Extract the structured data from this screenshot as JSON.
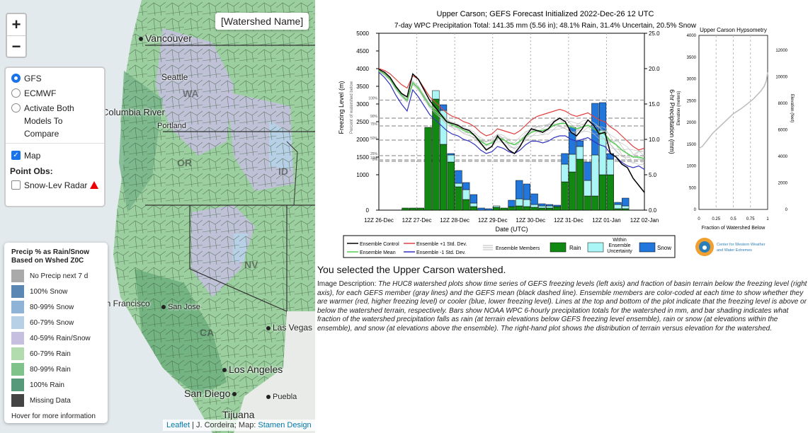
{
  "map": {
    "zoom_in": "+",
    "zoom_out": "−",
    "watershed_name": "[Watershed Name]",
    "cities": [
      {
        "name": "Vancouver"
      },
      {
        "name": "Seattle"
      },
      {
        "name": "Columbia River"
      },
      {
        "name": "Portland"
      },
      {
        "name": "San Francisco"
      },
      {
        "name": "San Jose"
      },
      {
        "name": "Las Vegas"
      },
      {
        "name": "Los Angeles"
      },
      {
        "name": "San Diego"
      },
      {
        "name": "Tijuana"
      },
      {
        "name": "Puebla"
      }
    ],
    "states": [
      "WA",
      "OR",
      "ID",
      "CA",
      "NV"
    ]
  },
  "controls": {
    "model_gfs": "GFS",
    "model_ecmwf": "ECMWF",
    "model_both": "Activate Both Models To Compare",
    "map_label": "Map",
    "point_obs_title": "Point Obs:",
    "snow_radar": "Snow-Lev Radar"
  },
  "legend": {
    "title": "Precip % as Rain/Snow Based on Wshed Z0C",
    "items": [
      {
        "label": "No Precip next 7 d",
        "color": "#aaaaaa"
      },
      {
        "label": "100% Snow",
        "color": "#5b87b5"
      },
      {
        "label": "80-99% Snow",
        "color": "#8fb3d6"
      },
      {
        "label": "60-79% Snow",
        "color": "#b7d0e6"
      },
      {
        "label": "40-59% Rain/Snow",
        "color": "#c7bfe0"
      },
      {
        "label": "60-79% Rain",
        "color": "#b2dcae"
      },
      {
        "label": "80-99% Rain",
        "color": "#7fc28a"
      },
      {
        "label": "100% Rain",
        "color": "#55987a"
      },
      {
        "label": "Missing Data",
        "color": "#444444"
      }
    ],
    "hover": "Hover for more information"
  },
  "attribution": {
    "leaflet": "Leaflet",
    "sep": " | J. Cordeira; Map: ",
    "stamen": "Stamen Design"
  },
  "chart_data": [
    {
      "type": "line",
      "title": "Upper Carson; GEFS Forecast Initialized 2022-Dec-26 12 UTC",
      "subtitle": "7-day WPC Precipitation Total: 141.35 mm (5.56 in);  48.1% Rain, 31.4% Uncertain, 20.5% Snow",
      "xlabel": "Date (UTC)",
      "ylabel": "Freezing Level (m)",
      "ylabel_inner": "Percent of watershed below",
      "ylabel_right": "6-hr Precipitation (mm)",
      "x_ticks": [
        "12Z 26-Dec",
        "12Z 27-Dec",
        "12Z 28-Dec",
        "12Z 29-Dec",
        "12Z 30-Dec",
        "12Z 31-Dec",
        "12Z 01-Jan",
        "12Z 02-Jan"
      ],
      "ylim": [
        0,
        5000
      ],
      "y_ticks": [
        0,
        1000,
        1500,
        2000,
        2500,
        3000,
        3500,
        4000,
        4500,
        5000
      ],
      "ylim_right": [
        0,
        25
      ],
      "y_ticks_right": [
        "0.0",
        "5.0",
        "10.0",
        "15.0",
        "20.0",
        "25.0"
      ],
      "percent_lines": [
        "100%",
        "90%",
        "75%",
        "50%",
        "25%",
        "10%",
        "0%"
      ],
      "percent_elev": [
        3110,
        2600,
        2380,
        1980,
        1540,
        1420,
        1380
      ],
      "ensemble_control": [
        3980,
        3900,
        3750,
        3500,
        3300,
        3200,
        3850,
        3700,
        3400,
        3100,
        2900,
        2700,
        2500,
        2450,
        2400,
        2300,
        2250,
        2100,
        1900,
        1700,
        1800,
        2100,
        1900,
        1700,
        1600,
        1800,
        2100,
        2300,
        2250,
        2200,
        2300,
        2500,
        2600,
        2500,
        2200,
        2100,
        2300,
        2550,
        2400,
        2150,
        2200,
        1600,
        1500,
        1300,
        1200,
        900,
        700,
        500
      ],
      "ensemble_mean": [
        3950,
        3850,
        3700,
        3450,
        3250,
        3100,
        3600,
        3450,
        3200,
        2950,
        2800,
        2650,
        2500,
        2400,
        2350,
        2250,
        2200,
        2100,
        1950,
        1850,
        1900,
        2050,
        2000,
        1900,
        1850,
        1950,
        2100,
        2200,
        2250,
        2250,
        2300,
        2400,
        2450,
        2450,
        2350,
        2300,
        2350,
        2400,
        2300,
        2200,
        2150,
        1950,
        1850,
        1700,
        1600,
        1500,
        1500,
        1450
      ],
      "plus_1sd": [
        4000,
        3950,
        3850,
        3700,
        3550,
        3450,
        3800,
        3700,
        3450,
        3200,
        3050,
        2900,
        2750,
        2650,
        2600,
        2500,
        2450,
        2350,
        2200,
        2100,
        2150,
        2300,
        2250,
        2200,
        2150,
        2250,
        2400,
        2550,
        2650,
        2700,
        2750,
        2800,
        2850,
        2800,
        2700,
        2650,
        2700,
        2750,
        2650,
        2550,
        2500,
        2350,
        2250,
        2100,
        1950,
        1800,
        1700,
        1750
      ],
      "minus_1sd": [
        3900,
        3750,
        3550,
        3250,
        3000,
        2800,
        3400,
        3200,
        2950,
        2700,
        2550,
        2400,
        2250,
        2150,
        2100,
        2000,
        1950,
        1850,
        1700,
        1600,
        1650,
        1800,
        1750,
        1650,
        1600,
        1700,
        1850,
        1950,
        1950,
        1900,
        1950,
        2050,
        2100,
        2100,
        2000,
        1950,
        2000,
        2050,
        1950,
        1850,
        1800,
        1600,
        1500,
        1350,
        1250,
        1200,
        1250,
        1150
      ],
      "precip_bars": [
        {
          "rain": 0,
          "uncertain": 0,
          "snow": 0
        },
        {
          "rain": 0,
          "uncertain": 0,
          "snow": 0
        },
        {
          "rain": 0,
          "uncertain": 0,
          "snow": 0
        },
        {
          "rain": 0.3,
          "uncertain": 0,
          "snow": 0
        },
        {
          "rain": 0.3,
          "uncertain": 0,
          "snow": 0
        },
        {
          "rain": 0.3,
          "uncertain": 0,
          "snow": 0
        },
        {
          "rain": 11.7,
          "uncertain": 0,
          "snow": 0
        },
        {
          "rain": 15.7,
          "uncertain": 1.2,
          "snow": 0
        },
        {
          "rain": 9.3,
          "uncertain": 4.8,
          "snow": 0.8
        },
        {
          "rain": 6.8,
          "uncertain": 1.0,
          "snow": 0.2
        },
        {
          "rain": 3.3,
          "uncertain": 0.5,
          "snow": 1.8
        },
        {
          "rain": 1.5,
          "uncertain": 1.4,
          "snow": 1.0
        },
        {
          "rain": 0.5,
          "uncertain": 0.5,
          "snow": 1.2
        },
        {
          "rain": 0,
          "uncertain": 0,
          "snow": 0.3
        },
        {
          "rain": 0,
          "uncertain": 0,
          "snow": 0.2
        },
        {
          "rain": 0.4,
          "uncertain": 0.2,
          "snow": 0
        },
        {
          "rain": 0.3,
          "uncertain": 0,
          "snow": 0
        },
        {
          "rain": 0.5,
          "uncertain": 0,
          "snow": 0.9
        },
        {
          "rain": 0.6,
          "uncertain": 1.0,
          "snow": 2.6
        },
        {
          "rain": 0.5,
          "uncertain": 1.0,
          "snow": 2.2
        },
        {
          "rain": 0.4,
          "uncertain": 0.4,
          "snow": 1.5
        },
        {
          "rain": 0.3,
          "uncertain": 0.3,
          "snow": 0.3
        },
        {
          "rain": 0.3,
          "uncertain": 0.3,
          "snow": 0.2
        },
        {
          "rain": 0.5,
          "uncertain": 0,
          "snow": 0.2
        },
        {
          "rain": 4.0,
          "uncertain": 2.5,
          "snow": 1.5
        },
        {
          "rain": 5.4,
          "uncertain": 2.5,
          "snow": 3.8
        },
        {
          "rain": 7.2,
          "uncertain": 1.8,
          "snow": 0.8
        },
        {
          "rain": 2.0,
          "uncertain": 2.2,
          "snow": 2.6
        },
        {
          "rain": 2.0,
          "uncertain": 5.8,
          "snow": 7.3
        },
        {
          "rain": 5.0,
          "uncertain": 6.3,
          "snow": 3.9
        },
        {
          "rain": 5.0,
          "uncertain": 2.2,
          "snow": 0.8
        },
        {
          "rain": 0.2,
          "uncertain": 0.6,
          "snow": 0.3
        },
        {
          "rain": 0.2,
          "uncertain": 0.4,
          "snow": 1.1
        },
        {
          "rain": 0,
          "uncertain": 0,
          "snow": 0
        },
        {
          "rain": 0,
          "uncertain": 0,
          "snow": 0
        }
      ],
      "legend": {
        "control": "Ensemble Control",
        "plus": "Ensemble +1 Std. Dev.",
        "members": "Ensemble Members",
        "rain": "Rain",
        "uncertain": "Within Ensemble Uncertainty",
        "snow": "Snow",
        "mean": "Ensemble Mean",
        "minus": "Ensemble -1 Std. Dev."
      },
      "colors": {
        "control": "#000000",
        "mean": "#55cc55",
        "plus": "#e04040",
        "minus": "#3030c0",
        "rain": "#118811",
        "uncertain": "#aaf5f5",
        "snow": "#2277dd"
      }
    },
    {
      "type": "line",
      "title": "Upper Carson Hypsometry",
      "xlabel": "Fraction of Watershed Below",
      "ylabel": "Elevation (meters)",
      "ylabel_right": "Elevation (feet)",
      "x": [
        0,
        0.05,
        0.1,
        0.2,
        0.3,
        0.4,
        0.5,
        0.6,
        0.7,
        0.8,
        0.9,
        0.95,
        0.98,
        1.0
      ],
      "y": [
        1400,
        1450,
        1550,
        1750,
        1900,
        2050,
        2200,
        2300,
        2420,
        2550,
        2720,
        2830,
        2950,
        3150
      ],
      "xlim": [
        0,
        1
      ],
      "ylim": [
        0,
        4000
      ],
      "x_ticks": [
        "0",
        "0.25",
        "0.5",
        "0.75",
        "1"
      ],
      "y_ticks": [
        0,
        500,
        1000,
        1500,
        2000,
        2500,
        3000,
        3500,
        4000
      ],
      "y_ticks_right": [
        0,
        2000,
        4000,
        6000,
        8000,
        10000,
        12000
      ]
    }
  ],
  "logo": {
    "text1": "Center for Western Weather",
    "text2": "and Water Extremes"
  },
  "selected_text": "You selected the Upper Carson watershed.",
  "description_label": "Image Description: ",
  "description": "The HUC8 watershed plots show time series of GEFS freezing levels (left axis) and fraction of basin terrain below the freezing level (right axis), for each GEFS member (gray lines) and the GEFS mean (black dashed line). Ensemble members are color-coded at each time to show whether they are warmer (red, higher freezing level) or cooler (blue, lower freezing level). Lines at the top and bottom of the plot indicate that the freezing level is above or below the watershed terrain, respectively. Bars show NOAA WPC 6-hourly precipitation totals for the watershed in mm, and bar shading indicates what fraction of the watershed precipitation falls as rain (at terrain elevations below GEFS freezing level ensemble), rain or snow (at elevations within the ensemble), and snow (at elevations above the ensemble). The right-hand plot shows the distribution of terrain versus elevation for the watershed."
}
